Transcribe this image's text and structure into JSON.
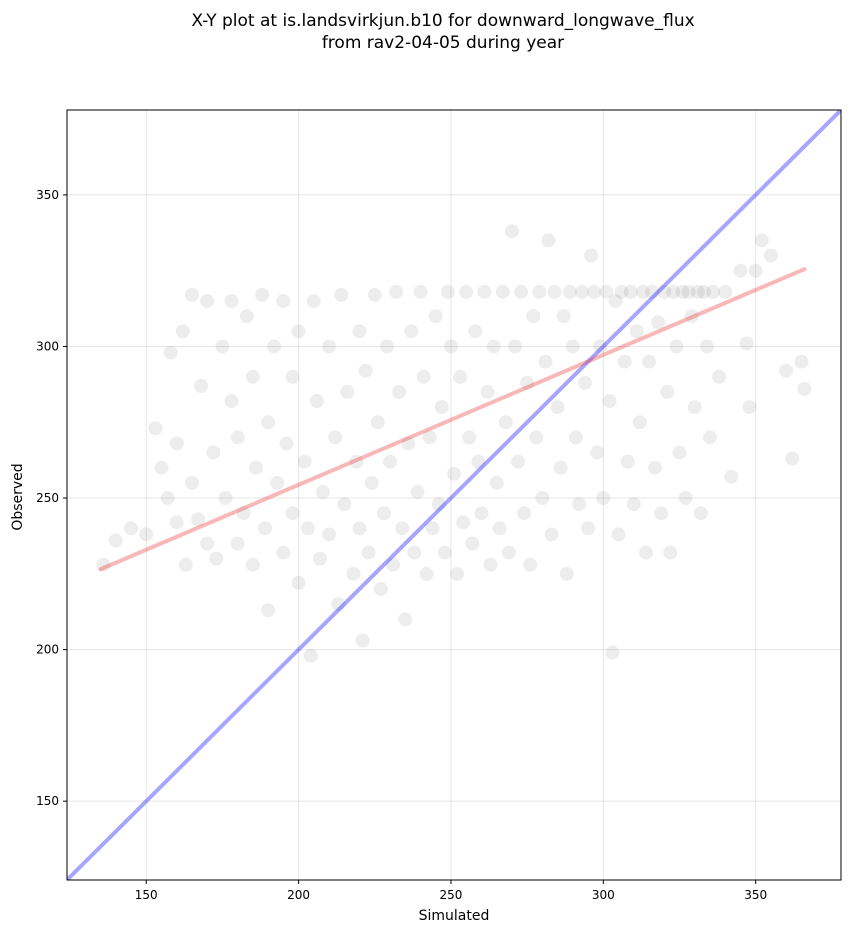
{
  "chart_data": {
    "type": "scatter",
    "title_line1": "X-Y plot at is.landsvirkjun.b10 for downward_longwave_flux",
    "title_line2": "from rav2-04-05 during year",
    "xlabel": "Simulated",
    "ylabel": "Observed",
    "xlim": [
      124,
      378
    ],
    "ylim": [
      124,
      378
    ],
    "xticks": [
      150,
      200,
      250,
      300,
      350
    ],
    "yticks": [
      150,
      200,
      250,
      300,
      350
    ],
    "grid": true,
    "point_color": "#000000",
    "series": [
      {
        "values": [
          [
            136,
            228
          ],
          [
            140,
            236
          ],
          [
            145,
            240
          ],
          [
            150,
            238
          ],
          [
            153,
            273
          ],
          [
            155,
            260
          ],
          [
            157,
            250
          ],
          [
            158,
            298
          ],
          [
            160,
            242
          ],
          [
            160,
            268
          ],
          [
            162,
            305
          ],
          [
            163,
            228
          ],
          [
            165,
            317
          ],
          [
            165,
            255
          ],
          [
            167,
            243
          ],
          [
            168,
            287
          ],
          [
            170,
            235
          ],
          [
            170,
            315
          ],
          [
            172,
            265
          ],
          [
            173,
            230
          ],
          [
            175,
            300
          ],
          [
            176,
            250
          ],
          [
            178,
            315
          ],
          [
            178,
            282
          ],
          [
            180,
            235
          ],
          [
            180,
            270
          ],
          [
            182,
            245
          ],
          [
            183,
            310
          ],
          [
            185,
            290
          ],
          [
            185,
            228
          ],
          [
            186,
            260
          ],
          [
            188,
            317
          ],
          [
            189,
            240
          ],
          [
            190,
            275
          ],
          [
            190,
            213
          ],
          [
            192,
            300
          ],
          [
            193,
            255
          ],
          [
            195,
            315
          ],
          [
            195,
            232
          ],
          [
            196,
            268
          ],
          [
            198,
            245
          ],
          [
            198,
            290
          ],
          [
            200,
            222
          ],
          [
            200,
            305
          ],
          [
            202,
            262
          ],
          [
            203,
            240
          ],
          [
            204,
            198
          ],
          [
            205,
            315
          ],
          [
            206,
            282
          ],
          [
            207,
            230
          ],
          [
            208,
            252
          ],
          [
            210,
            300
          ],
          [
            210,
            238
          ],
          [
            212,
            270
          ],
          [
            213,
            215
          ],
          [
            214,
            317
          ],
          [
            215,
            248
          ],
          [
            216,
            285
          ],
          [
            218,
            225
          ],
          [
            219,
            262
          ],
          [
            220,
            305
          ],
          [
            220,
            240
          ],
          [
            221,
            203
          ],
          [
            222,
            292
          ],
          [
            223,
            232
          ],
          [
            224,
            255
          ],
          [
            225,
            317
          ],
          [
            226,
            275
          ],
          [
            227,
            220
          ],
          [
            228,
            245
          ],
          [
            229,
            300
          ],
          [
            230,
            262
          ],
          [
            231,
            228
          ],
          [
            232,
            318
          ],
          [
            233,
            285
          ],
          [
            234,
            240
          ],
          [
            235,
            210
          ],
          [
            236,
            268
          ],
          [
            237,
            305
          ],
          [
            238,
            232
          ],
          [
            239,
            252
          ],
          [
            240,
            318
          ],
          [
            241,
            290
          ],
          [
            242,
            225
          ],
          [
            243,
            270
          ],
          [
            244,
            240
          ],
          [
            245,
            310
          ],
          [
            246,
            248
          ],
          [
            247,
            280
          ],
          [
            248,
            232
          ],
          [
            249,
            318
          ],
          [
            250,
            300
          ],
          [
            251,
            258
          ],
          [
            252,
            225
          ],
          [
            253,
            290
          ],
          [
            254,
            242
          ],
          [
            255,
            318
          ],
          [
            256,
            270
          ],
          [
            257,
            235
          ],
          [
            258,
            305
          ],
          [
            259,
            262
          ],
          [
            260,
            245
          ],
          [
            261,
            318
          ],
          [
            262,
            285
          ],
          [
            263,
            228
          ],
          [
            264,
            300
          ],
          [
            265,
            255
          ],
          [
            266,
            240
          ],
          [
            267,
            318
          ],
          [
            268,
            275
          ],
          [
            269,
            232
          ],
          [
            270,
            338
          ],
          [
            271,
            300
          ],
          [
            272,
            262
          ],
          [
            273,
            318
          ],
          [
            274,
            245
          ],
          [
            275,
            288
          ],
          [
            276,
            228
          ],
          [
            277,
            310
          ],
          [
            278,
            270
          ],
          [
            279,
            318
          ],
          [
            280,
            250
          ],
          [
            281,
            295
          ],
          [
            282,
            335
          ],
          [
            283,
            238
          ],
          [
            284,
            318
          ],
          [
            285,
            280
          ],
          [
            286,
            260
          ],
          [
            287,
            310
          ],
          [
            288,
            225
          ],
          [
            289,
            318
          ],
          [
            290,
            300
          ],
          [
            291,
            270
          ],
          [
            292,
            248
          ],
          [
            293,
            318
          ],
          [
            294,
            288
          ],
          [
            295,
            240
          ],
          [
            296,
            330
          ],
          [
            297,
            318
          ],
          [
            298,
            265
          ],
          [
            299,
            300
          ],
          [
            300,
            250
          ],
          [
            301,
            318
          ],
          [
            302,
            282
          ],
          [
            303,
            199
          ],
          [
            304,
            315
          ],
          [
            305,
            238
          ],
          [
            306,
            318
          ],
          [
            307,
            295
          ],
          [
            308,
            262
          ],
          [
            309,
            318
          ],
          [
            310,
            248
          ],
          [
            311,
            305
          ],
          [
            312,
            275
          ],
          [
            313,
            318
          ],
          [
            314,
            232
          ],
          [
            315,
            295
          ],
          [
            316,
            318
          ],
          [
            317,
            260
          ],
          [
            318,
            308
          ],
          [
            319,
            245
          ],
          [
            320,
            318
          ],
          [
            321,
            285
          ],
          [
            322,
            232
          ],
          [
            323,
            318
          ],
          [
            324,
            300
          ],
          [
            325,
            265
          ],
          [
            326,
            318
          ],
          [
            327,
            250
          ],
          [
            328,
            318
          ],
          [
            329,
            310
          ],
          [
            330,
            280
          ],
          [
            331,
            318
          ],
          [
            332,
            245
          ],
          [
            333,
            318
          ],
          [
            334,
            300
          ],
          [
            335,
            270
          ],
          [
            336,
            318
          ],
          [
            338,
            290
          ],
          [
            340,
            318
          ],
          [
            342,
            257
          ],
          [
            345,
            325
          ],
          [
            347,
            301
          ],
          [
            348,
            280
          ],
          [
            350,
            325
          ],
          [
            352,
            335
          ],
          [
            355,
            330
          ],
          [
            360,
            292
          ],
          [
            362,
            263
          ],
          [
            365,
            295
          ],
          [
            366,
            286
          ]
        ]
      }
    ],
    "lines": [
      {
        "name": "",
        "color": "#0000ff",
        "points": [
          [
            124,
            124
          ],
          [
            378,
            378
          ]
        ]
      },
      {
        "name": "",
        "color": "#ee3333",
        "points": [
          [
            135,
            226.5
          ],
          [
            366,
            325.5
          ]
        ]
      }
    ]
  }
}
